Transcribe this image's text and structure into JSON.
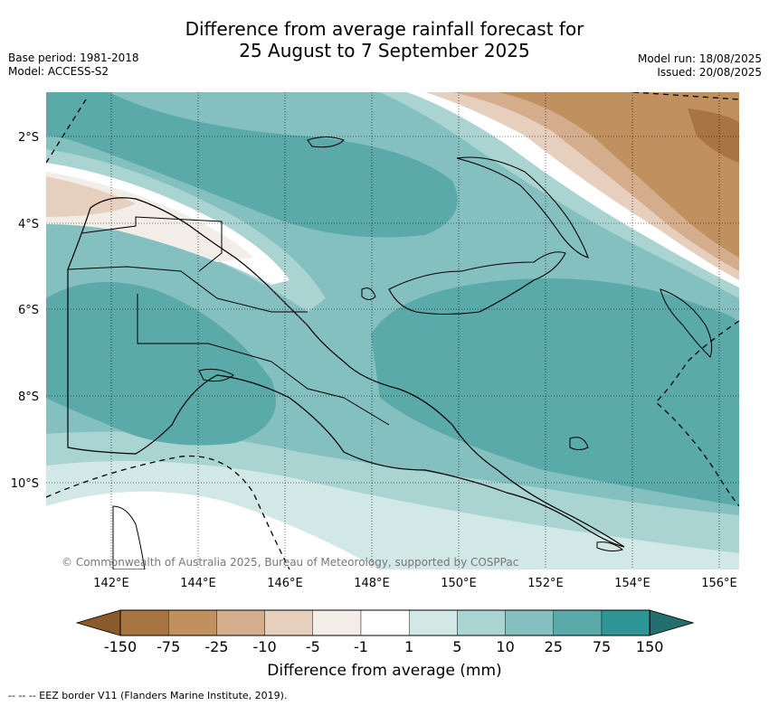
{
  "header": {
    "title_line1": "Difference from average rainfall forecast for",
    "title_line2": "25 August to 7 September 2025",
    "base_period": "Base period: 1981-2018",
    "model": "Model: ACCESS-S2",
    "model_run": "Model run: 18/08/2025",
    "issued": "Issued: 20/08/2025"
  },
  "map": {
    "region": "Papua New Guinea",
    "lat_labels": [
      "2°S",
      "4°S",
      "6°S",
      "8°S",
      "10°S"
    ],
    "lon_labels": [
      "142°E",
      "144°E",
      "146°E",
      "148°E",
      "150°E",
      "152°E",
      "154°E",
      "156°E"
    ],
    "copyright": "© Commonwealth of Australia 2025, Bureau of Meteorology, supported by COSPPac"
  },
  "legend": {
    "title": "Difference from average (mm)",
    "ticks": [
      "-150",
      "-75",
      "-25",
      "-10",
      "-5",
      "-1",
      "1",
      "5",
      "10",
      "25",
      "75",
      "150"
    ],
    "colors": [
      "#8a5a2b",
      "#a87442",
      "#c0905f",
      "#d4ae8c",
      "#e6cfbd",
      "#f3ede7",
      "#ffffff",
      "#d2e8e6",
      "#aad4d2",
      "#84c0bf",
      "#5aaaa9",
      "#2e9795",
      "#246f6d"
    ]
  },
  "footer": {
    "eez_note": "--  --  -- EEZ border V11 (Flanders Marine Institute, 2019)."
  }
}
